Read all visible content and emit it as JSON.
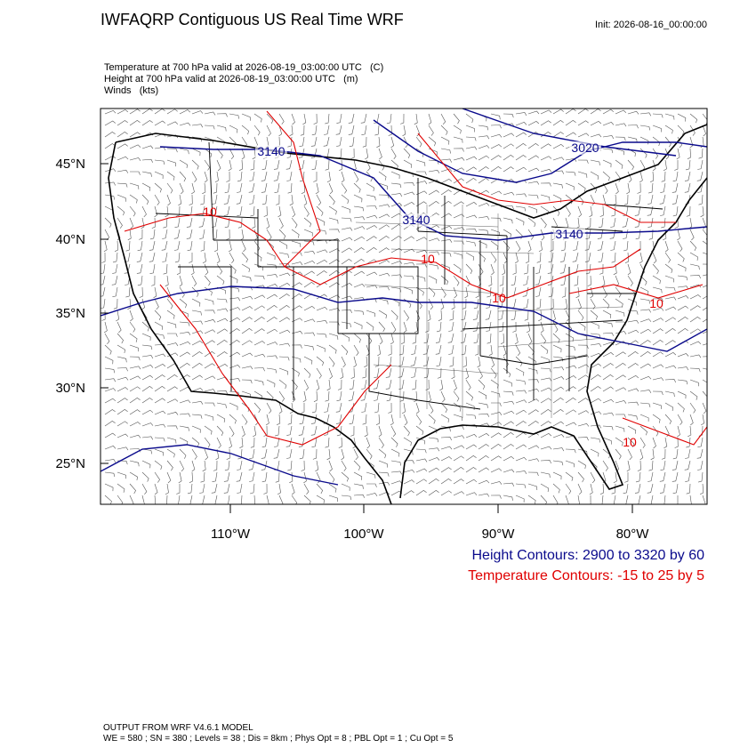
{
  "header": {
    "title": "IWFAQRP Contiguous US Real Time WRF",
    "init": "Init: 2026-08-16_00:00:00"
  },
  "fields": [
    "Temperature at 700 hPa valid at 2026-08-19_03:00:00 UTC   (C)",
    "Height at 700 hPa valid at 2026-08-19_03:00:00 UTC   (m)",
    "Winds   (kts)"
  ],
  "map": {
    "lat_labels": [
      "45°N",
      "40°N",
      "35°N",
      "30°N",
      "25°N"
    ],
    "lon_labels": [
      "110°W",
      "100°W",
      "90°W",
      "80°W"
    ],
    "height_contour_labels": [
      "3140",
      "3020",
      "3140",
      "3140"
    ],
    "temperature_contour_labels": [
      "10",
      "10",
      "10",
      "10",
      "10"
    ]
  },
  "legend": {
    "height": "Height Contours: 2900 to 3320 by 60",
    "temperature": "Temperature Contours: -15 to 25 by 5"
  },
  "footer": [
    "OUTPUT FROM WRF V4.6.1 MODEL",
    "WE = 580 ; SN = 380 ; Levels = 38 ; Dis = 8km ; Phys Opt = 8 ; PBL Opt = 1 ; Cu Opt = 5"
  ]
}
